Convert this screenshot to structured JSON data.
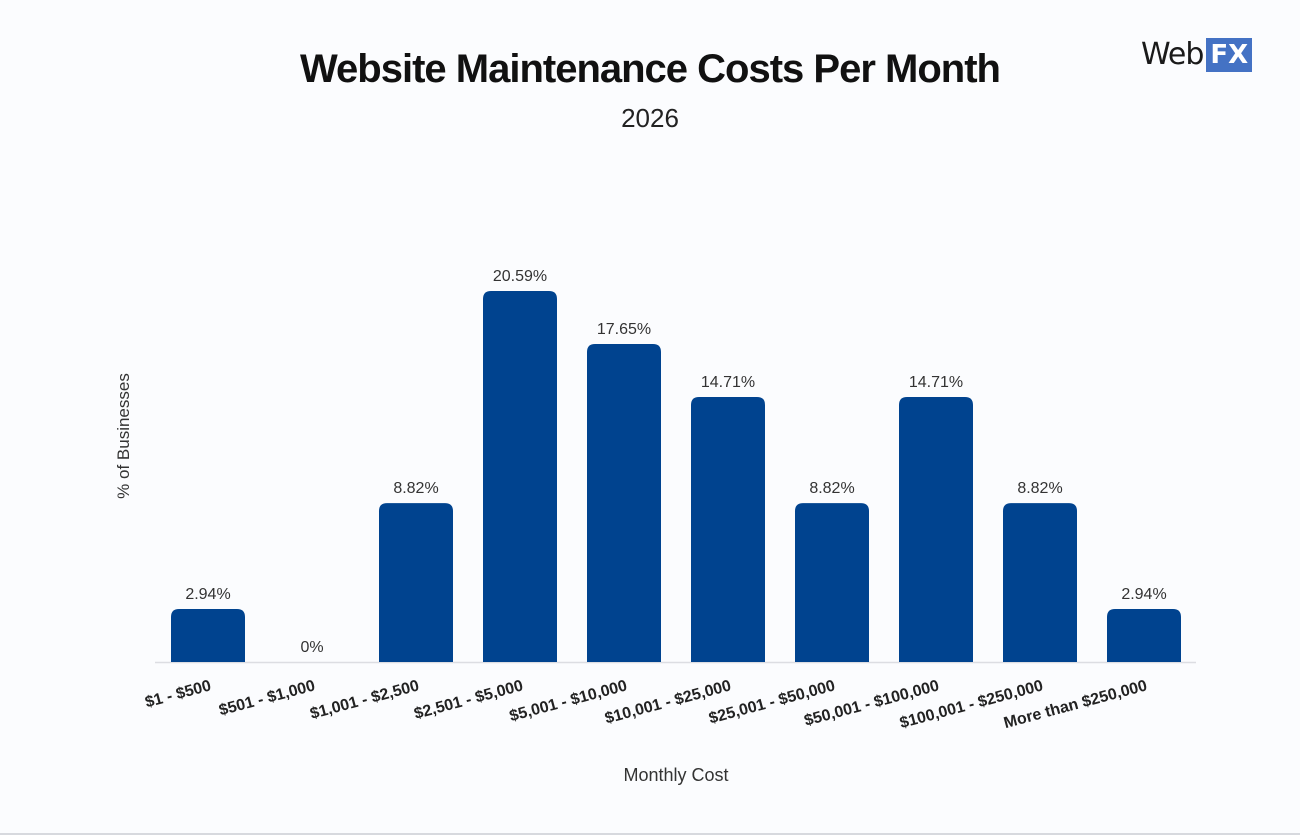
{
  "brand": {
    "logo_text": "WebFX"
  },
  "chart_data": {
    "type": "bar",
    "title": "Website Maintenance Costs Per Month",
    "subtitle": "2026",
    "xlabel": "Monthly Cost",
    "ylabel": "% of Businesses",
    "categories": [
      "$1 - $500",
      "$501 - $1,000",
      "$1,001 - $2,500",
      "$2,501 - $5,000",
      "$5,001 - $10,000",
      "$10,001 - $25,000",
      "$25,001 - $50,000",
      "$50,001 - $100,000",
      "$100,001 - $250,000",
      "More than $250,000"
    ],
    "values": [
      2.94,
      0,
      8.82,
      20.59,
      17.65,
      14.71,
      8.82,
      14.71,
      8.82,
      2.94
    ],
    "data_labels": [
      "2.94%",
      "0%",
      "8.82%",
      "20.59%",
      "17.65%",
      "14.71%",
      "8.82%",
      "14.71%",
      "8.82%",
      "2.94%"
    ],
    "ylim": [
      0,
      22
    ],
    "grid": false,
    "bar_color": "#00438f"
  }
}
